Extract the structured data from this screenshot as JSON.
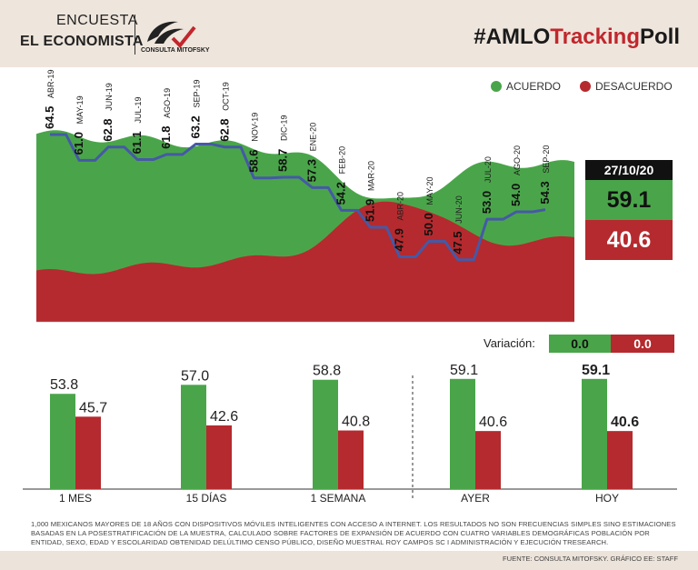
{
  "header": {
    "survey_line1": "ENCUESTA",
    "survey_line2": "EL ECONOMISTA",
    "logo_text": "CONSULTA MITOFSKY",
    "hashtag_prefix": "#AMLO",
    "hashtag_accent": "Tracking",
    "hashtag_suffix": "Poll"
  },
  "legend": {
    "acuerdo": "ACUERDO",
    "desacuerdo": "DESACUERDO"
  },
  "colors": {
    "acuerdo": "#4aa54a",
    "desacuerdo": "#b52a2e",
    "line": "#4559a6",
    "accent": "#c0272d"
  },
  "current": {
    "date": "27/10/20",
    "acuerdo": "59.1",
    "desacuerdo": "40.6"
  },
  "variation": {
    "label": "Variación:",
    "acuerdo": "0.0",
    "desacuerdo": "0.0"
  },
  "chart_data": [
    {
      "type": "line",
      "title": "",
      "x": [
        "ABR-19",
        "MAY-19",
        "JUN-19",
        "JUL-19",
        "AGO-19",
        "SEP-19",
        "OCT-19",
        "NOV-19",
        "DIC-19",
        "ENE-20",
        "FEB-20",
        "MAR-20",
        "ABR-20",
        "MAY-20",
        "JUN-20",
        "JUL-20",
        "AGO-20",
        "SEP-20"
      ],
      "series": [
        {
          "values": [
            64.5,
            61.0,
            62.8,
            61.1,
            61.8,
            63.2,
            62.8,
            58.6,
            58.7,
            57.3,
            54.2,
            51.9,
            47.9,
            50.0,
            47.5,
            53.0,
            54.0,
            54.3
          ]
        }
      ],
      "background_area": {
        "type": "area",
        "acuerdo_start": 67,
        "acuerdo_end": 59.1,
        "desacuerdo_start": 32,
        "desacuerdo_end": 40.6
      }
    },
    {
      "type": "bar",
      "categories": [
        "1 MES",
        "15 DÍAS",
        "1 SEMANA",
        "AYER",
        "HOY"
      ],
      "series": [
        {
          "name": "ACUERDO",
          "values": [
            53.8,
            57.0,
            58.8,
            59.1,
            59.1
          ]
        },
        {
          "name": "DESACUERDO",
          "values": [
            45.7,
            42.6,
            40.8,
            40.6,
            40.6
          ]
        }
      ],
      "labels_acuerdo": [
        "53.8",
        "57.0",
        "58.8",
        "59.1",
        "59.1"
      ],
      "labels_desacuerdo": [
        "45.7",
        "42.6",
        "40.8",
        "40.6",
        "40.6"
      ],
      "ylim": [
        0,
        100
      ]
    }
  ],
  "footnote": "1,000 MEXICANOS MAYORES DE 18 AÑOS CON DISPOSITIVOS MÓVILES INTELIGENTES CON ACCESO A INTERNET. LOS RESULTADOS NO SON FRECUENCIAS SIMPLES SINO ESTIMACIONES BASADAS EN LA POSESTRATIFICACIÓN DE LA MUESTRA, CALCULADO SOBRE FACTORES DE EXPANSIÓN DE ACUERDO CON CUATRO VARIABLES DEMOGRÁFICAS POBLACIÓN POR ENTIDAD, SEXO, EDAD Y ESCOLARIDAD OBTENIDAD DELÚLTIMO CENSO PÚBLICO, DISEÑO MUESTRAL ROY CAMPOS SC I ADMINISTRACIÓN Y EJECUCIÓN TRESEARCH.",
  "source": "FUENTE: CONSULTA MITOFSKY. GRÁFICO EE: STAFF"
}
